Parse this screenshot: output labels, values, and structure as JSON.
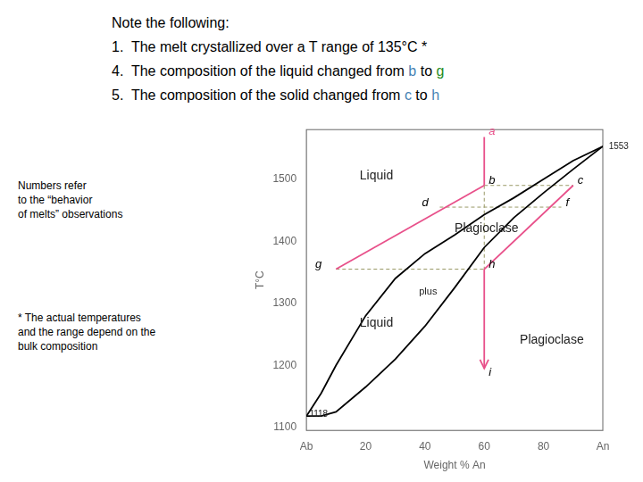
{
  "chart_data": {
    "type": "line",
    "xlabel": "Weight % An",
    "ylabel": "T°C",
    "xlim": [
      0,
      100
    ],
    "ylim": [
      1095,
      1580
    ],
    "xticks": [
      {
        "value": 0,
        "label": "Ab"
      },
      20,
      40,
      60,
      80,
      {
        "value": 100,
        "label": "An"
      }
    ],
    "yticks": [
      1100,
      1200,
      1300,
      1400,
      1500
    ],
    "grid": false,
    "legend": false,
    "series": [
      {
        "color": "black",
        "x": [
          0,
          5,
          10,
          20,
          30,
          40,
          50,
          60,
          70,
          80,
          90,
          100
        ],
        "values": [
          1118,
          1155,
          1200,
          1280,
          1340,
          1380,
          1410,
          1443,
          1470,
          1500,
          1530,
          1553
        ]
      },
      {
        "color": "black",
        "x": [
          0,
          5,
          10,
          20,
          30,
          40,
          50,
          60,
          70,
          80,
          90,
          100
        ],
        "values": [
          1118,
          1118,
          1125,
          1165,
          1210,
          1263,
          1325,
          1390,
          1438,
          1478,
          1516,
          1553
        ]
      },
      {
        "color": "#e8508a",
        "x": [
          60,
          60
        ],
        "values": [
          1568,
          1490
        ]
      },
      {
        "color": "#e8508a",
        "x": [
          60,
          60
        ],
        "values": [
          1355,
          1195
        ],
        "marker": "arrow"
      },
      {
        "color": "#e8508a",
        "x": [
          60,
          10
        ],
        "values": [
          1490,
          1355
        ]
      },
      {
        "color": "#e8508a",
        "x": [
          90,
          60
        ],
        "values": [
          1490,
          1355
        ]
      },
      {
        "color": "#999966",
        "x": [
          60,
          90
        ],
        "values": [
          1490,
          1490
        ],
        "line_style": "dashed"
      },
      {
        "color": "#999966",
        "x": [
          60,
          60
        ],
        "values": [
          1490,
          1355
        ],
        "line_style": "dashed"
      },
      {
        "color": "#999966",
        "x": [
          45,
          86
        ],
        "values": [
          1455,
          1455
        ],
        "line_style": "dashed"
      },
      {
        "color": "#999966",
        "x": [
          10,
          60
        ],
        "values": [
          1355,
          1355
        ],
        "line_style": "dashed"
      }
    ],
    "point_labels": [
      {
        "text": "a",
        "x": 61.5,
        "y": 1571,
        "color": "#e8508a"
      },
      {
        "text": "b",
        "x": 61.5,
        "y": 1492,
        "color": "black"
      },
      {
        "text": "c",
        "x": 91.5,
        "y": 1492,
        "color": "black"
      },
      {
        "text": "d",
        "x": 39,
        "y": 1457,
        "color": "black"
      },
      {
        "text": "f",
        "x": 87.5,
        "y": 1457,
        "color": "black"
      },
      {
        "text": "g",
        "x": 3,
        "y": 1357,
        "color": "black"
      },
      {
        "text": "h",
        "x": 61.5,
        "y": 1357,
        "color": "black"
      },
      {
        "text": "i",
        "x": 61.5,
        "y": 1183,
        "color": "black"
      }
    ],
    "region_labels": [
      {
        "text": "Liquid",
        "x": 18,
        "y": 1505
      },
      {
        "text": "Plagioclase",
        "x": 50,
        "y": 1420
      },
      {
        "text": "Liquid",
        "x": 18,
        "y": 1268
      },
      {
        "text": "plus",
        "x": 38,
        "y": 1318
      },
      {
        "text": "Plagioclase",
        "x": 72,
        "y": 1240
      }
    ],
    "annotations": [
      {
        "text": "1553",
        "x": 102,
        "y": 1553
      },
      {
        "text": "1118",
        "x": 1,
        "y": 1121
      }
    ],
    "notes": [
      [
        {
          "text": "Note the following:",
          "color": "black"
        }
      ],
      [
        {
          "text": "1.  The melt crystallized over a T range of 135°C *",
          "color": "black"
        }
      ],
      [
        {
          "text": "4.  The composition of the liquid changed from ",
          "color": "black"
        },
        {
          "text": "b",
          "color": "#4682B4"
        },
        {
          "text": " to ",
          "color": "black"
        },
        {
          "text": "g",
          "color": "#228B22"
        }
      ],
      [
        {
          "text": "5.  The composition of the solid changed from ",
          "color": "black"
        },
        {
          "text": "c",
          "color": "#4682B4"
        },
        {
          "text": " to ",
          "color": "black"
        },
        {
          "text": "h",
          "color": "#4682B4"
        }
      ]
    ],
    "side_notes": [
      "Numbers refer\nto the “behavior\nof melts” observations",
      "*  The actual temperatures\nand the range depend on the\nbulk composition"
    ]
  }
}
